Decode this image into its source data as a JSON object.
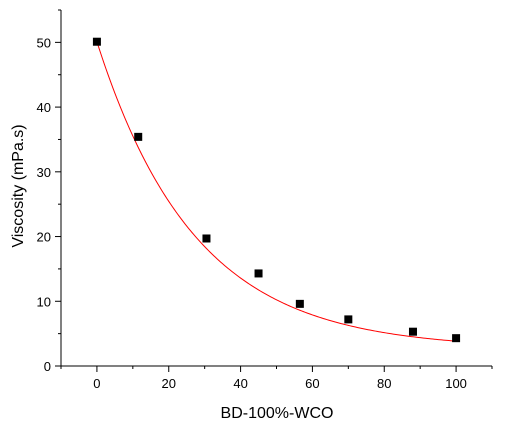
{
  "chart_data": {
    "type": "scatter",
    "title": "",
    "xlabel": "BD-100%-WCO",
    "ylabel": "Viscosity (mPa.s)",
    "xlim": [
      -10,
      110
    ],
    "ylim": [
      0,
      55
    ],
    "xticks": [
      0,
      20,
      40,
      60,
      80,
      100
    ],
    "yticks": [
      0,
      10,
      20,
      30,
      40,
      50
    ],
    "grid": false,
    "legend": "none",
    "series": [
      {
        "x": [
          0,
          11.5,
          30.5,
          45,
          56.5,
          70,
          88,
          100
        ],
        "y": [
          50.1,
          35.4,
          19.7,
          14.3,
          9.6,
          7.2,
          5.3,
          4.3
        ],
        "marker": "square",
        "color": "#000000"
      }
    ],
    "fit": {
      "type": "exponential-decay",
      "color": "#ff0000",
      "y0": 2.62,
      "A": 47.48,
      "t": 27.3
    }
  }
}
